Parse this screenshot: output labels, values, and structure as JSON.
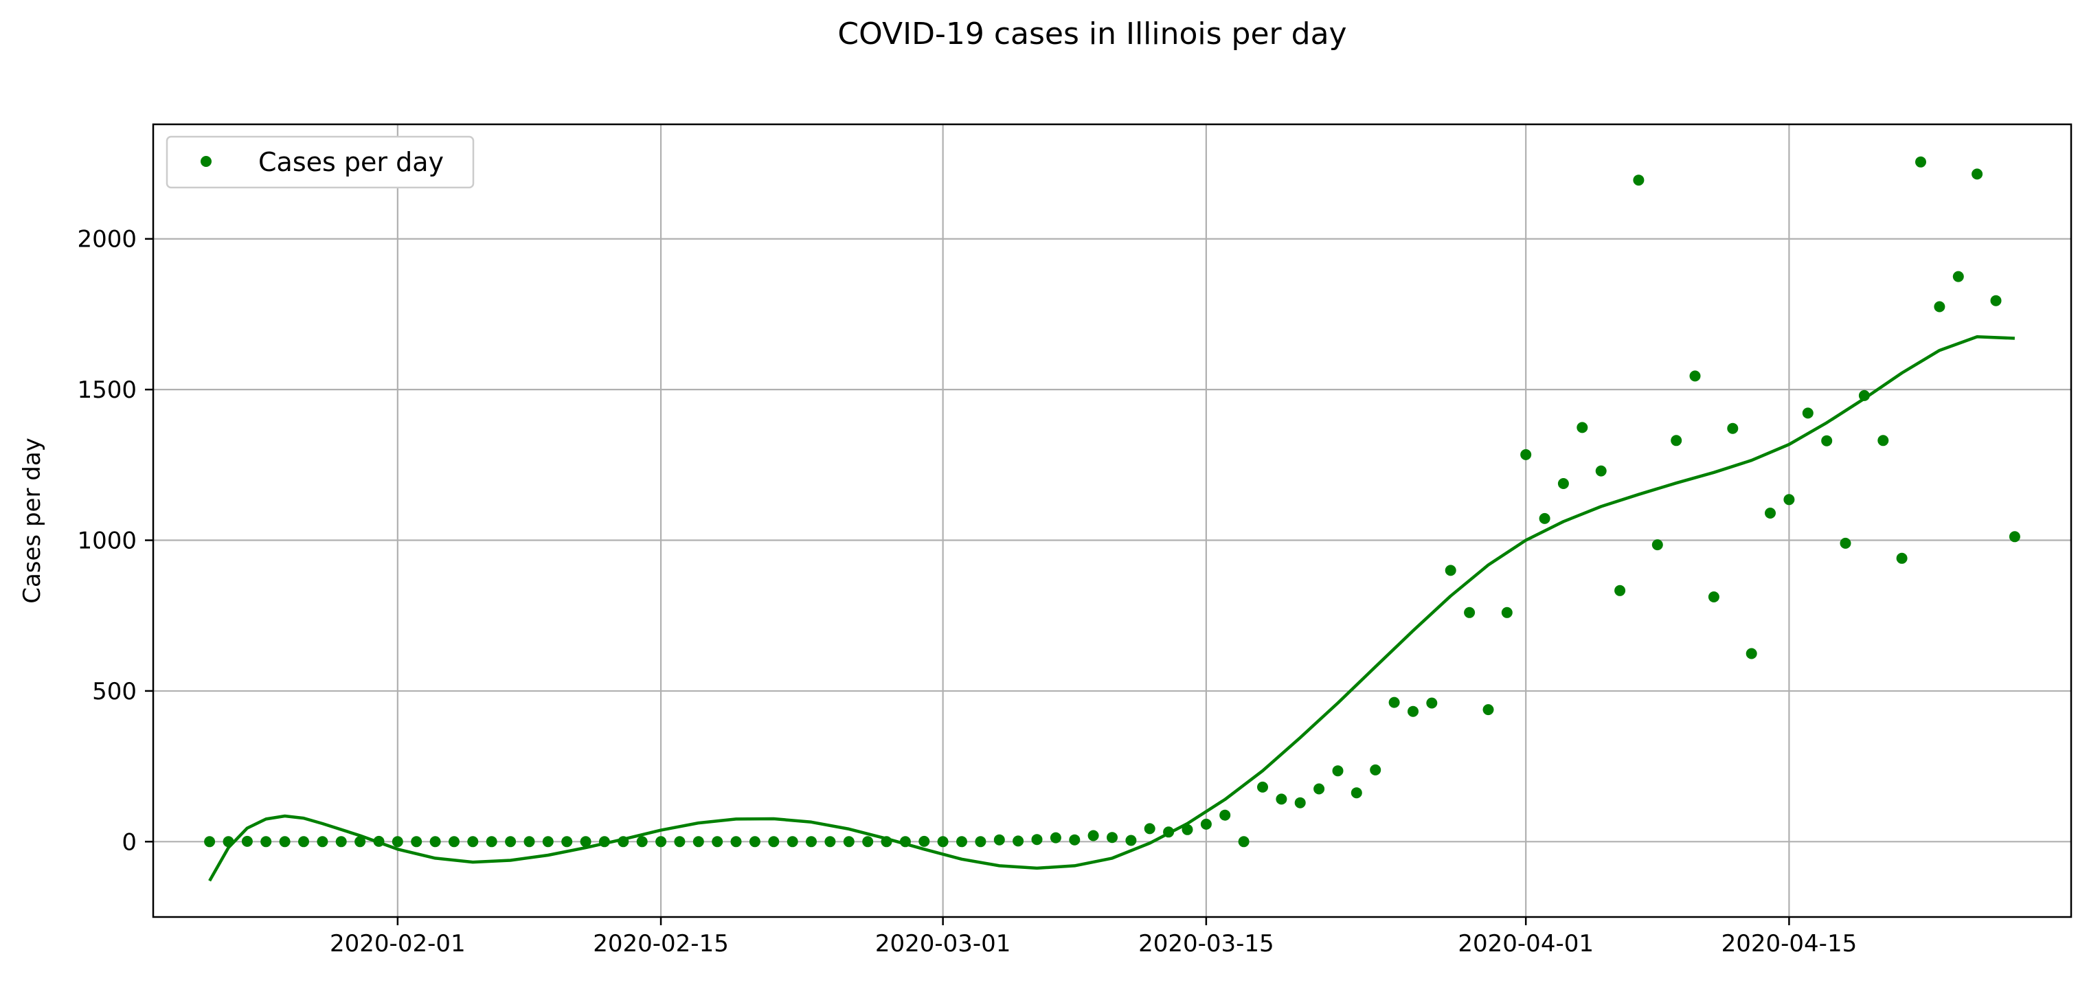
{
  "chart_data": {
    "type": "scatter",
    "title": "COVID-19 cases in Illinois per day",
    "xlabel": "",
    "ylabel": "Cases per day",
    "x_axis": "date",
    "xlim": [
      "2020-01-19",
      "2020-04-30"
    ],
    "ylim": [
      -250,
      2380
    ],
    "grid": true,
    "legend_position": "top-left",
    "color": "#008000",
    "x_ticks": [
      "2020-02-01",
      "2020-02-15",
      "2020-03-01",
      "2020-03-15",
      "2020-04-01",
      "2020-04-15"
    ],
    "y_ticks": [
      0,
      500,
      1000,
      1500,
      2000
    ],
    "series": [
      {
        "name": "Cases per day",
        "marker": "point",
        "points": [
          [
            "2020-01-22",
            0
          ],
          [
            "2020-01-23",
            0
          ],
          [
            "2020-01-24",
            1
          ],
          [
            "2020-01-25",
            0
          ],
          [
            "2020-01-26",
            0
          ],
          [
            "2020-01-27",
            0
          ],
          [
            "2020-01-28",
            0
          ],
          [
            "2020-01-29",
            0
          ],
          [
            "2020-01-30",
            0
          ],
          [
            "2020-01-31",
            1
          ],
          [
            "2020-02-01",
            0
          ],
          [
            "2020-02-02",
            0
          ],
          [
            "2020-02-03",
            0
          ],
          [
            "2020-02-04",
            0
          ],
          [
            "2020-02-05",
            0
          ],
          [
            "2020-02-06",
            0
          ],
          [
            "2020-02-07",
            0
          ],
          [
            "2020-02-08",
            0
          ],
          [
            "2020-02-09",
            0
          ],
          [
            "2020-02-10",
            0
          ],
          [
            "2020-02-11",
            0
          ],
          [
            "2020-02-12",
            0
          ],
          [
            "2020-02-13",
            0
          ],
          [
            "2020-02-14",
            0
          ],
          [
            "2020-02-15",
            0
          ],
          [
            "2020-02-16",
            0
          ],
          [
            "2020-02-17",
            0
          ],
          [
            "2020-02-18",
            0
          ],
          [
            "2020-02-19",
            0
          ],
          [
            "2020-02-20",
            0
          ],
          [
            "2020-02-21",
            0
          ],
          [
            "2020-02-22",
            0
          ],
          [
            "2020-02-23",
            0
          ],
          [
            "2020-02-24",
            0
          ],
          [
            "2020-02-25",
            0
          ],
          [
            "2020-02-26",
            0
          ],
          [
            "2020-02-27",
            0
          ],
          [
            "2020-02-28",
            0
          ],
          [
            "2020-02-29",
            1
          ],
          [
            "2020-03-01",
            0
          ],
          [
            "2020-03-02",
            0
          ],
          [
            "2020-03-03",
            0
          ],
          [
            "2020-03-04",
            6
          ],
          [
            "2020-03-05",
            2
          ],
          [
            "2020-03-06",
            7
          ],
          [
            "2020-03-07",
            13
          ],
          [
            "2020-03-08",
            6
          ],
          [
            "2020-03-09",
            20
          ],
          [
            "2020-03-10",
            14
          ],
          [
            "2020-03-11",
            4
          ],
          [
            "2020-03-12",
            43
          ],
          [
            "2020-03-13",
            32
          ],
          [
            "2020-03-14",
            40
          ],
          [
            "2020-03-15",
            58
          ],
          [
            "2020-03-16",
            88
          ],
          [
            "2020-03-17",
            0
          ],
          [
            "2020-03-18",
            181
          ],
          [
            "2020-03-19",
            141
          ],
          [
            "2020-03-20",
            129
          ],
          [
            "2020-03-21",
            175
          ],
          [
            "2020-03-22",
            235
          ],
          [
            "2020-03-23",
            162
          ],
          [
            "2020-03-24",
            238
          ],
          [
            "2020-03-25",
            462
          ],
          [
            "2020-03-26",
            432
          ],
          [
            "2020-03-27",
            460
          ],
          [
            "2020-03-28",
            900
          ],
          [
            "2020-03-29",
            760
          ],
          [
            "2020-03-30",
            438
          ],
          [
            "2020-03-31",
            760
          ],
          [
            "2020-04-01",
            1284
          ],
          [
            "2020-04-02",
            1072
          ],
          [
            "2020-04-03",
            1188
          ],
          [
            "2020-04-04",
            1374
          ],
          [
            "2020-04-05",
            1230
          ],
          [
            "2020-04-06",
            833
          ],
          [
            "2020-04-07",
            2195
          ],
          [
            "2020-04-08",
            985
          ],
          [
            "2020-04-09",
            1331
          ],
          [
            "2020-04-10",
            1545
          ],
          [
            "2020-04-11",
            812
          ],
          [
            "2020-04-12",
            1371
          ],
          [
            "2020-04-13",
            624
          ],
          [
            "2020-04-14",
            1090
          ],
          [
            "2020-04-15",
            1135
          ],
          [
            "2020-04-16",
            1422
          ],
          [
            "2020-04-17",
            1330
          ],
          [
            "2020-04-18",
            990
          ],
          [
            "2020-04-19",
            1480
          ],
          [
            "2020-04-20",
            1331
          ],
          [
            "2020-04-21",
            940
          ],
          [
            "2020-04-22",
            2255
          ],
          [
            "2020-04-23",
            1775
          ],
          [
            "2020-04-24",
            1875
          ],
          [
            "2020-04-25",
            2215
          ],
          [
            "2020-04-26",
            1795
          ],
          [
            "2020-04-27",
            1012
          ]
        ]
      },
      {
        "marker": "line",
        "points": [
          [
            "2020-01-22",
            -130
          ],
          [
            "2020-01-23",
            -20
          ],
          [
            "2020-01-24",
            45
          ],
          [
            "2020-01-25",
            75
          ],
          [
            "2020-01-26",
            85
          ],
          [
            "2020-01-27",
            78
          ],
          [
            "2020-01-28",
            60
          ],
          [
            "2020-01-30",
            20
          ],
          [
            "2020-02-01",
            -25
          ],
          [
            "2020-02-03",
            -55
          ],
          [
            "2020-02-05",
            -68
          ],
          [
            "2020-02-07",
            -62
          ],
          [
            "2020-02-09",
            -45
          ],
          [
            "2020-02-11",
            -20
          ],
          [
            "2020-02-13",
            8
          ],
          [
            "2020-02-15",
            38
          ],
          [
            "2020-02-17",
            62
          ],
          [
            "2020-02-19",
            75
          ],
          [
            "2020-02-21",
            76
          ],
          [
            "2020-02-23",
            65
          ],
          [
            "2020-02-25",
            42
          ],
          [
            "2020-02-27",
            10
          ],
          [
            "2020-02-29",
            -25
          ],
          [
            "2020-03-02",
            -58
          ],
          [
            "2020-03-04",
            -80
          ],
          [
            "2020-03-06",
            -88
          ],
          [
            "2020-03-08",
            -80
          ],
          [
            "2020-03-10",
            -55
          ],
          [
            "2020-03-12",
            -5
          ],
          [
            "2020-03-14",
            60
          ],
          [
            "2020-03-16",
            140
          ],
          [
            "2020-03-18",
            235
          ],
          [
            "2020-03-20",
            345
          ],
          [
            "2020-03-22",
            460
          ],
          [
            "2020-03-24",
            580
          ],
          [
            "2020-03-26",
            700
          ],
          [
            "2020-03-28",
            815
          ],
          [
            "2020-03-30",
            918
          ],
          [
            "2020-04-01",
            1000
          ],
          [
            "2020-04-03",
            1062
          ],
          [
            "2020-04-05",
            1112
          ],
          [
            "2020-04-07",
            1152
          ],
          [
            "2020-04-09",
            1190
          ],
          [
            "2020-04-11",
            1225
          ],
          [
            "2020-04-13",
            1265
          ],
          [
            "2020-04-15",
            1318
          ],
          [
            "2020-04-17",
            1390
          ],
          [
            "2020-04-19",
            1470
          ],
          [
            "2020-04-21",
            1555
          ],
          [
            "2020-04-23",
            1630
          ],
          [
            "2020-04-25",
            1675
          ],
          [
            "2020-04-27",
            1670
          ]
        ]
      }
    ]
  }
}
